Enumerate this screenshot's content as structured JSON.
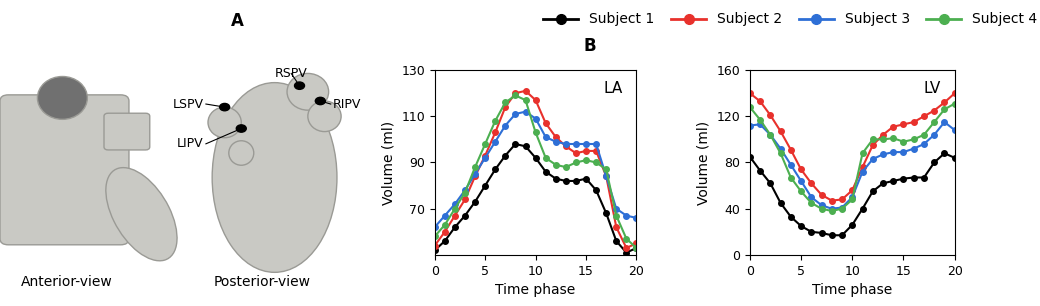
{
  "panel_a": {
    "label": "A",
    "views": [
      "Anterior-view",
      "Posterior-view"
    ],
    "landmarks": [
      "LSPV",
      "RSPV",
      "RIPV",
      "LIPV"
    ]
  },
  "panel_b": {
    "label": "B"
  },
  "chart_data": [
    {
      "type": "line",
      "title": "LA",
      "x_label": "Time phase",
      "y_label": "Volume (ml)",
      "x": [
        0,
        1,
        2,
        3,
        4,
        5,
        6,
        7,
        8,
        9,
        10,
        11,
        12,
        13,
        14,
        15,
        16,
        17,
        18,
        19,
        20
      ],
      "xlim": [
        0,
        20
      ],
      "xticks": [
        0,
        5,
        10,
        15,
        20
      ],
      "ylim": [
        50,
        130
      ],
      "yticks": [
        70,
        90,
        110,
        130
      ],
      "marker": "o",
      "legend": "top",
      "series": [
        {
          "name": "Subject 1",
          "color": "#000000",
          "values": [
            52,
            56,
            62,
            67,
            73,
            80,
            87,
            93,
            98,
            97,
            92,
            86,
            83,
            82,
            82,
            83,
            78,
            68,
            56,
            51,
            53
          ]
        },
        {
          "name": "Subject 2",
          "color": "#e8312c",
          "values": [
            54,
            60,
            67,
            74,
            84,
            93,
            103,
            114,
            120,
            121,
            117,
            107,
            101,
            97,
            94,
            95,
            95,
            84,
            62,
            53,
            55
          ]
        },
        {
          "name": "Subject 3",
          "color": "#2e6fd6",
          "values": [
            62,
            67,
            72,
            78,
            85,
            92,
            99,
            106,
            111,
            112,
            109,
            101,
            99,
            98,
            98,
            98,
            98,
            84,
            70,
            67,
            66
          ]
        },
        {
          "name": "Subject 4",
          "color": "#4caf50",
          "values": [
            58,
            63,
            70,
            77,
            88,
            98,
            108,
            116,
            119,
            117,
            103,
            92,
            89,
            88,
            90,
            91,
            90,
            87,
            67,
            57,
            53
          ]
        }
      ]
    },
    {
      "type": "line",
      "title": "LV",
      "x_label": "Time phase",
      "y_label": "Volume (ml)",
      "x": [
        0,
        1,
        2,
        3,
        4,
        5,
        6,
        7,
        8,
        9,
        10,
        11,
        12,
        13,
        14,
        15,
        16,
        17,
        18,
        19,
        20
      ],
      "xlim": [
        0,
        20
      ],
      "xticks": [
        0,
        5,
        10,
        15,
        20
      ],
      "ylim": [
        0,
        160
      ],
      "yticks": [
        0,
        40,
        80,
        120,
        160
      ],
      "marker": "o",
      "series": [
        {
          "name": "Subject 1",
          "color": "#000000",
          "values": [
            85,
            73,
            62,
            45,
            33,
            25,
            20,
            19,
            17,
            17,
            26,
            40,
            55,
            62,
            64,
            66,
            67,
            67,
            80,
            88,
            84
          ]
        },
        {
          "name": "Subject 2",
          "color": "#e8312c",
          "values": [
            140,
            133,
            121,
            107,
            91,
            74,
            62,
            52,
            47,
            48,
            56,
            76,
            95,
            104,
            111,
            113,
            115,
            120,
            125,
            132,
            140
          ]
        },
        {
          "name": "Subject 3",
          "color": "#2e6fd6",
          "values": [
            112,
            113,
            104,
            92,
            78,
            64,
            50,
            43,
            40,
            41,
            50,
            72,
            83,
            87,
            89,
            89,
            92,
            96,
            104,
            115,
            108
          ]
        },
        {
          "name": "Subject 4",
          "color": "#4caf50",
          "values": [
            128,
            117,
            104,
            88,
            67,
            55,
            45,
            40,
            38,
            40,
            48,
            88,
            100,
            100,
            101,
            98,
            100,
            104,
            115,
            126,
            131
          ]
        }
      ]
    }
  ]
}
